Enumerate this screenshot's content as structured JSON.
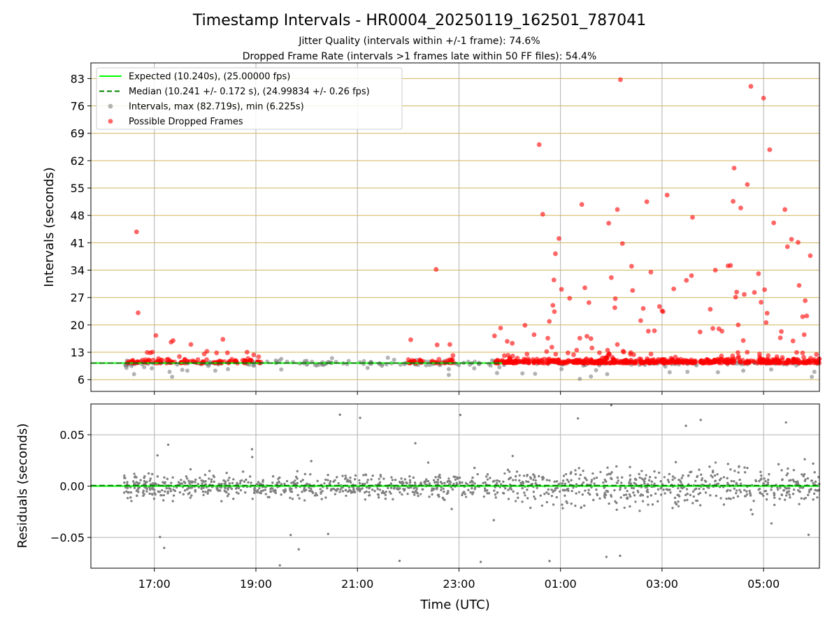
{
  "title": "Timestamp Intervals - HR0004_20250119_162501_787041",
  "subtitle_1": "Jitter Quality (intervals within +/-1 frame): 74.6%",
  "subtitle_2": "Dropped Frame Rate (intervals >1 frames late within 50 FF files): 54.4%",
  "colors": {
    "expected": "#00ff00",
    "median": "#008000",
    "intervals": "#808080",
    "dropped": "#ff0000",
    "hgrid_top": "#d2b55b",
    "grid": "#b0b0b0"
  },
  "chart_data": [
    {
      "type": "scatter",
      "panel": "top",
      "ylabel": "Intervals (seconds)",
      "xlabel": "",
      "ylim": [
        3,
        87
      ],
      "xlim_hours": [
        15.75,
        30.1
      ],
      "yticks": [
        6,
        13,
        20,
        27,
        34,
        41,
        48,
        55,
        62,
        69,
        76,
        83
      ],
      "ytick_labels": [
        "6",
        "13",
        "20",
        "27",
        "34",
        "41",
        "48",
        "55",
        "62",
        "69",
        "76",
        "83"
      ],
      "grid": "horizontal and vertical",
      "legend_placement": "top-left",
      "legend": [
        {
          "label": "Expected (10.240s), (25.00000 fps)",
          "style": "solid-line",
          "color": "#00ff00"
        },
        {
          "label": "Median (10.241 +/- 0.172 s), (24.99834 +/- 0.26 fps)",
          "style": "dashed-line",
          "color": "#008000"
        },
        {
          "label": "Intervals, max (82.719s), min (6.225s)",
          "style": "marker",
          "color": "#808080"
        },
        {
          "label": "Possible Dropped Frames",
          "style": "marker",
          "color": "#ff0000"
        }
      ],
      "expected_value": 10.24,
      "median_value": 10.241,
      "series": [
        {
          "name": "Possible Dropped Frames",
          "color": "#ff0000",
          "points": [
            [
              16.65,
              43.8
            ],
            [
              16.68,
              23.1
            ],
            [
              17.03,
              17.3
            ],
            [
              17.33,
              15.6
            ],
            [
              17.37,
              16.0
            ],
            [
              17.72,
              15.0
            ],
            [
              18.35,
              16.3
            ],
            [
              22.05,
              16.2
            ],
            [
              22.55,
              34.2
            ],
            [
              22.57,
              14.9
            ],
            [
              22.82,
              15.0
            ],
            [
              23.7,
              17.2
            ],
            [
              23.82,
              19.2
            ],
            [
              23.95,
              15.8
            ],
            [
              24.05,
              15.3
            ],
            [
              24.3,
              19.9
            ],
            [
              24.48,
              17.5
            ],
            [
              24.58,
              66.1
            ],
            [
              24.65,
              48.3
            ],
            [
              24.75,
              16.6
            ],
            [
              24.78,
              20.9
            ],
            [
              24.83,
              14.3
            ],
            [
              24.85,
              25.0
            ],
            [
              24.87,
              31.5
            ],
            [
              24.88,
              23.4
            ],
            [
              24.9,
              38.2
            ],
            [
              24.97,
              42.1
            ],
            [
              25.02,
              29.1
            ],
            [
              25.18,
              26.8
            ],
            [
              25.38,
              16.6
            ],
            [
              25.42,
              50.8
            ],
            [
              25.48,
              29.5
            ],
            [
              25.52,
              17.1
            ],
            [
              25.56,
              25.7
            ],
            [
              25.6,
              16.5
            ],
            [
              25.62,
              14.1
            ],
            [
              25.95,
              46.0
            ],
            [
              26.0,
              32.1
            ],
            [
              26.07,
              24.4
            ],
            [
              26.08,
              26.7
            ],
            [
              26.12,
              15.0
            ],
            [
              26.12,
              49.5
            ],
            [
              26.18,
              82.7
            ],
            [
              26.22,
              40.8
            ],
            [
              26.4,
              35.0
            ],
            [
              26.42,
              28.8
            ],
            [
              26.58,
              21.1
            ],
            [
              26.63,
              24.2
            ],
            [
              26.7,
              51.5
            ],
            [
              26.73,
              18.4
            ],
            [
              26.78,
              33.5
            ],
            [
              26.85,
              18.5
            ],
            [
              26.95,
              24.7
            ],
            [
              27.0,
              23.6
            ],
            [
              27.02,
              23.4
            ],
            [
              27.1,
              53.2
            ],
            [
              27.23,
              29.2
            ],
            [
              27.48,
              31.4
            ],
            [
              27.6,
              47.5
            ],
            [
              27.58,
              32.6
            ],
            [
              27.75,
              18.2
            ],
            [
              27.95,
              24.0
            ],
            [
              28.0,
              19.1
            ],
            [
              28.05,
              34.0
            ],
            [
              28.12,
              19.0
            ],
            [
              28.18,
              18.4
            ],
            [
              28.3,
              35.1
            ],
            [
              28.35,
              35.2
            ],
            [
              28.42,
              60.1
            ],
            [
              28.45,
              27.1
            ],
            [
              28.47,
              28.4
            ],
            [
              28.4,
              51.6
            ],
            [
              28.55,
              49.9
            ],
            [
              28.6,
              16.0
            ],
            [
              28.62,
              27.8
            ],
            [
              28.68,
              55.9
            ],
            [
              28.75,
              81.0
            ],
            [
              28.82,
              28.3
            ],
            [
              28.9,
              33.1
            ],
            [
              28.95,
              25.8
            ],
            [
              29.02,
              29.0
            ],
            [
              29.0,
              78.0
            ],
            [
              29.05,
              20.6
            ],
            [
              29.07,
              23.0
            ],
            [
              29.12,
              64.8
            ],
            [
              29.2,
              46.1
            ],
            [
              29.33,
              16.7
            ],
            [
              29.42,
              49.5
            ],
            [
              29.47,
              40.0
            ],
            [
              29.55,
              41.9
            ],
            [
              29.68,
              41.1
            ],
            [
              29.7,
              30.1
            ],
            [
              29.77,
              22.1
            ],
            [
              29.82,
              26.2
            ],
            [
              29.85,
              22.3
            ],
            [
              29.92,
              37.7
            ],
            [
              29.8,
              17.5
            ],
            [
              29.58,
              15.9
            ],
            [
              29.35,
              18.3
            ],
            [
              28.5,
              20.0
            ]
          ]
        },
        {
          "name": "Intervals",
          "color": "#808080",
          "points": [
            [
              16.45,
              9.0
            ],
            [
              16.55,
              9.5
            ],
            [
              16.6,
              7.4
            ],
            [
              16.8,
              9.2
            ],
            [
              16.95,
              8.9
            ],
            [
              17.3,
              8.0
            ],
            [
              17.35,
              6.7
            ],
            [
              17.55,
              8.5
            ],
            [
              17.65,
              8.3
            ],
            [
              18.2,
              8.3
            ],
            [
              18.45,
              8.7
            ],
            [
              19.5,
              11.3
            ],
            [
              19.5,
              8.6
            ],
            [
              20.0,
              10.8
            ],
            [
              20.5,
              11.5
            ],
            [
              21.2,
              9.0
            ],
            [
              21.6,
              11.6
            ],
            [
              22.72,
              10.8
            ],
            [
              22.8,
              7.2
            ],
            [
              22.8,
              8.7
            ],
            [
              23.3,
              8.9
            ],
            [
              23.4,
              10.0
            ],
            [
              23.65,
              10.9
            ],
            [
              23.75,
              7.7
            ],
            [
              24.25,
              7.6
            ],
            [
              24.5,
              7.5
            ],
            [
              25.02,
              8.7
            ],
            [
              25.38,
              6.2
            ],
            [
              25.6,
              6.8
            ],
            [
              25.7,
              8.4
            ],
            [
              25.92,
              7.4
            ],
            [
              27.15,
              7.9
            ],
            [
              27.5,
              8.0
            ],
            [
              28.1,
              7.9
            ],
            [
              28.6,
              8.3
            ],
            [
              29.15,
              8.6
            ],
            [
              29.95,
              6.7
            ],
            [
              30.0,
              8.0
            ]
          ]
        }
      ]
    },
    {
      "type": "scatter",
      "panel": "bottom",
      "ylabel": "Residuals (seconds)",
      "xlabel": "Time (UTC)",
      "ylim": [
        -0.08,
        0.08
      ],
      "yticks": [
        -0.05,
        0.0,
        0.05
      ],
      "ytick_labels": [
        "−0.05",
        "0.00",
        "0.05"
      ],
      "xlim_hours": [
        15.75,
        30.1
      ],
      "xticks_hours": [
        17,
        19,
        21,
        23,
        25,
        27,
        29
      ],
      "xtick_labels": [
        "17:00",
        "19:00",
        "21:00",
        "23:00",
        "01:00",
        "03:00",
        "05:00"
      ],
      "grid": "horizontal and vertical",
      "residual_range_sample": [
        -0.075,
        0.08
      ],
      "series": [
        {
          "name": "Residuals",
          "color": "#808080",
          "count_approx": 2500
        }
      ]
    }
  ]
}
